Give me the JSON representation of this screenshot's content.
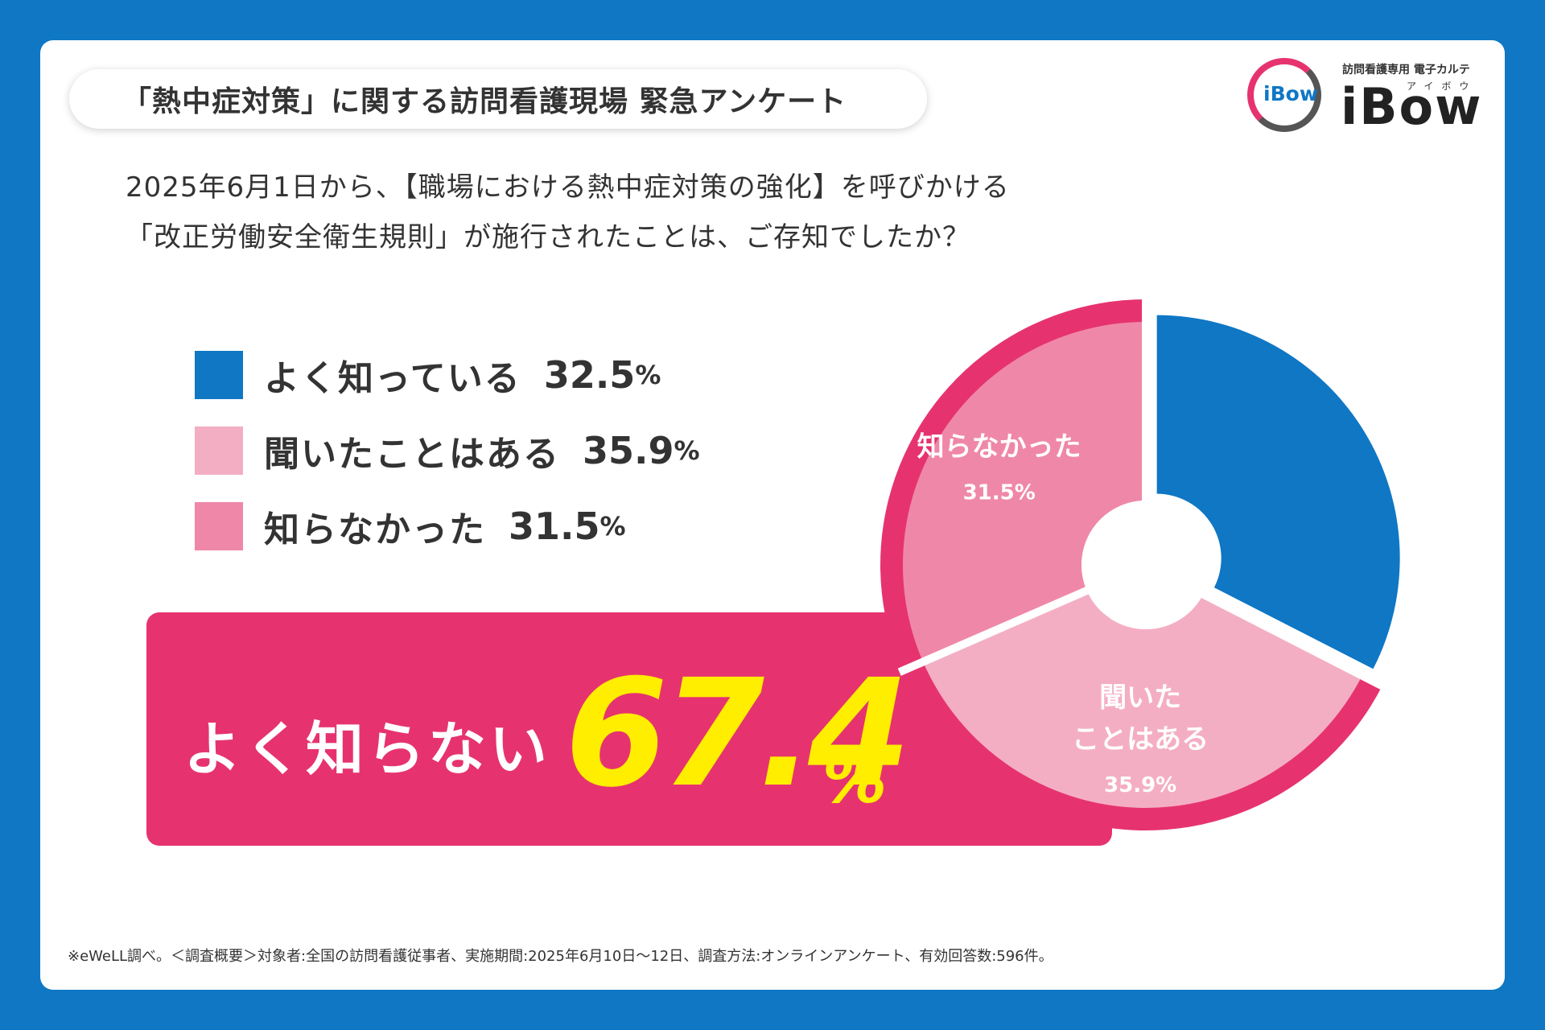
{
  "header": {
    "title": "「熱中症対策」に関する訪問看護現場 緊急アンケート",
    "logo_badge": "iBow",
    "logo_tagline": "訪問看護専用 電子カルテ",
    "logo_kana": "アイボウ",
    "logo_word": "iBow"
  },
  "question": {
    "line1": "2025年6月1日から、【職場における熱中症対策の強化】を呼びかける",
    "line2": "「改正労働安全衛生規則」が施行されたことは、ご存知でしたか？"
  },
  "legend": [
    {
      "label": "よく知っている",
      "value": "32.5",
      "pct": "%",
      "color": "#0f77c4"
    },
    {
      "label": "聞いたことはある",
      "value": "35.9",
      "pct": "%",
      "color": "#f4aec4"
    },
    {
      "label": "知らなかった",
      "value": "31.5",
      "pct": "%",
      "color": "#ef88a8"
    }
  ],
  "banner": {
    "label": "よく知らない",
    "value": "67.4",
    "pct": "%",
    "color": "#e6336f",
    "value_color": "#ffee00"
  },
  "chart_data": {
    "type": "pie",
    "title": "",
    "categories": [
      "よく知っている",
      "聞いたことはある",
      "知らなかった"
    ],
    "values": [
      32.5,
      35.9,
      31.5
    ],
    "colors": [
      "#0f77c4",
      "#f4aec4",
      "#ef88a8"
    ],
    "annotations": [
      {
        "category": "聞いたことはある",
        "lines": [
          "聞いた",
          "ことはある"
        ],
        "value_text": "35.9%"
      },
      {
        "category": "知らなかった",
        "lines": [
          "知らなかった"
        ],
        "value_text": "31.5%"
      }
    ],
    "combined": {
      "label": "よく知らない",
      "categories": [
        "聞いたことはある",
        "知らなかった"
      ],
      "value": 67.4
    }
  },
  "footnote": "※eWeLL調べ。＜調査概要＞対象者:全国の訪問看護従事者、実施期間:2025年6月10日〜12日、調査方法:オンラインアンケート、有効回答数:596件。"
}
